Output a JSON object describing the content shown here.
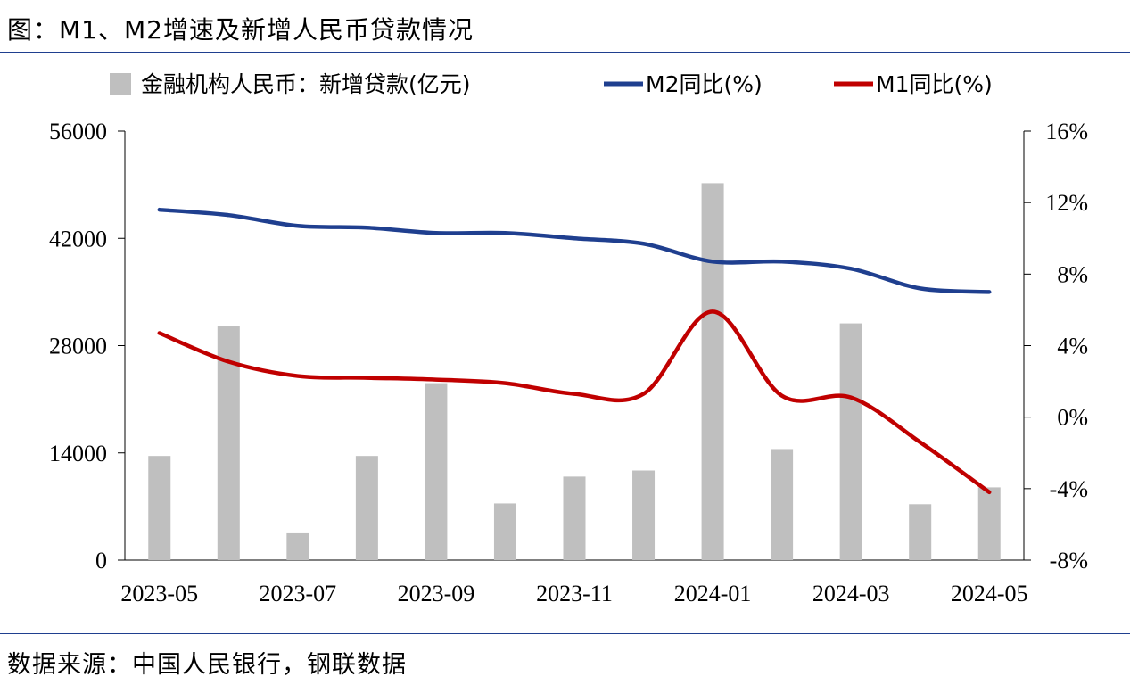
{
  "header": {
    "title": "图：M1、M2增速及新增人民币贷款情况"
  },
  "footer": {
    "source": "数据来源：中国人民银行，钢联数据"
  },
  "colors": {
    "bar": "#bfbfbf",
    "m2": "#1f3f8f",
    "m1": "#c00000",
    "rule": "#1f3f8f"
  },
  "chart_data": {
    "type": "bar+line",
    "categories": [
      "2023-05",
      "2023-06",
      "2023-07",
      "2023-08",
      "2023-09",
      "2023-10",
      "2023-11",
      "2023-12",
      "2024-01",
      "2024-02",
      "2024-03",
      "2024-04",
      "2024-05"
    ],
    "x_tick_labels": [
      "2023-05",
      "2023-07",
      "2023-09",
      "2023-11",
      "2024-01",
      "2024-03",
      "2024-05"
    ],
    "y_left": {
      "ylim": [
        0,
        56000
      ],
      "ticks": [
        "0",
        "14000",
        "28000",
        "42000",
        "56000"
      ]
    },
    "y_right": {
      "ylim": [
        -8,
        16
      ],
      "ticks": [
        "-8%",
        "-4%",
        "0%",
        "4%",
        "8%",
        "12%",
        "16%"
      ]
    },
    "legend_position": "top",
    "series": [
      {
        "name": "金融机构人民币：新增贷款(亿元)",
        "type": "bar",
        "axis": "left",
        "values": [
          13600,
          30500,
          3500,
          13600,
          23100,
          7400,
          10900,
          11700,
          49200,
          14500,
          30900,
          7300,
          9500
        ]
      },
      {
        "name": "M2同比(%)",
        "type": "line",
        "axis": "right",
        "values": [
          11.6,
          11.3,
          10.7,
          10.6,
          10.3,
          10.3,
          10.0,
          9.7,
          8.7,
          8.7,
          8.3,
          7.2,
          7.0
        ]
      },
      {
        "name": "M1同比(%)",
        "type": "line",
        "axis": "right",
        "values": [
          4.7,
          3.1,
          2.3,
          2.2,
          2.1,
          1.9,
          1.3,
          1.3,
          5.9,
          1.2,
          1.1,
          -1.4,
          -4.2
        ]
      }
    ]
  }
}
